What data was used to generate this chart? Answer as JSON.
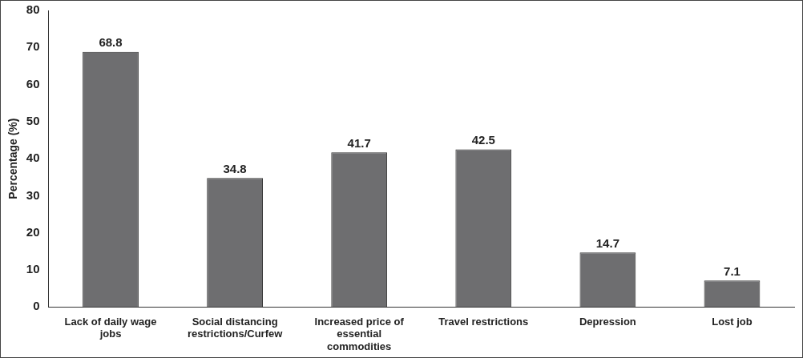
{
  "chart_data": {
    "type": "bar",
    "ylabel": "Percentage (%)",
    "categories": [
      "Lack of daily wage jobs",
      "Social distancing restrictions/Curfew",
      "Increased price of essential commodities",
      "Travel restrictions",
      "Depression",
      "Lost job"
    ],
    "values": [
      68.8,
      34.8,
      41.7,
      42.5,
      14.7,
      7.1
    ],
    "color": "#6e6e70",
    "ylim": [
      0,
      80
    ],
    "yticks": [
      0,
      10,
      20,
      30,
      40,
      50,
      60,
      70,
      80
    ],
    "data_labels": true
  }
}
